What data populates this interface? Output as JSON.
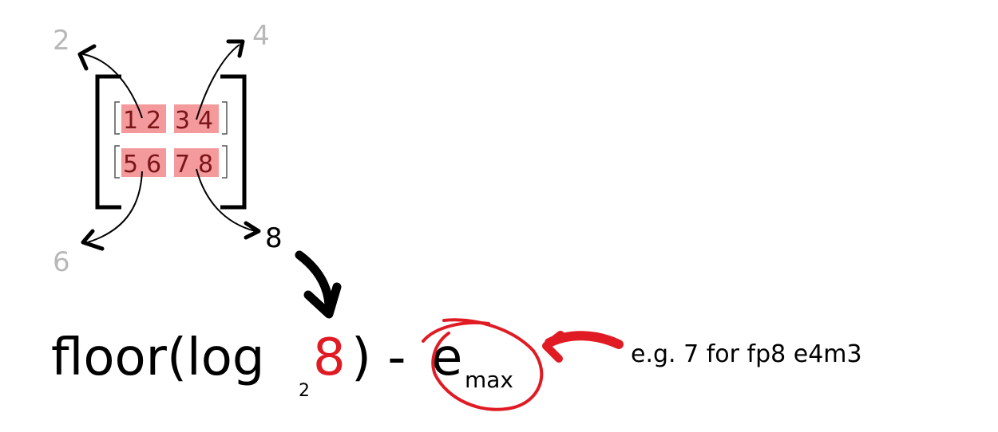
{
  "matrix": {
    "row1": [
      "1",
      "2",
      "3",
      "4"
    ],
    "row2": [
      "5",
      "6",
      "7",
      "8"
    ]
  },
  "outputs": {
    "top_left": "2",
    "top_right": "4",
    "bottom_left": "6",
    "bottom_right": "8"
  },
  "formula": {
    "prefix": "floor(log",
    "base": "2",
    "argument": "8",
    "suffix": ") -",
    "term": "e",
    "term_subscript": "max"
  },
  "annotation": "e.g. 7 for fp8 e4m3",
  "colors": {
    "highlight": "#f49a9c",
    "cell_text": "#7a1518",
    "accent_red": "#e01b24",
    "gray": "#b8b8b8"
  }
}
